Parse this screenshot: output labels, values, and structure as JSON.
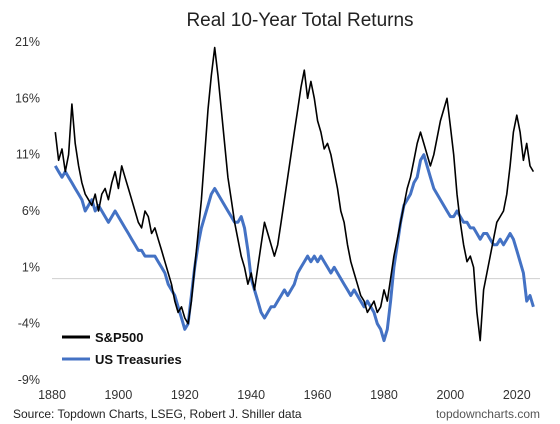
{
  "chart_data": {
    "type": "line",
    "title": "Real 10-Year Total Returns",
    "xlabel": "",
    "ylabel": "",
    "xlim": [
      1880,
      2027
    ],
    "ylim": [
      -9,
      21
    ],
    "x_ticks": [
      1880,
      1900,
      1920,
      1940,
      1960,
      1980,
      2000,
      2020
    ],
    "x_tick_labels": [
      "1880",
      "1900",
      "1920",
      "1940",
      "1960",
      "1980",
      "2000",
      "2020"
    ],
    "y_ticks": [
      21,
      16,
      11,
      6,
      1,
      -4,
      -9
    ],
    "y_tick_labels": [
      "21%",
      "16%",
      "11%",
      "6%",
      "1%",
      "-4%",
      "-9%"
    ],
    "zero_line": 0,
    "legend_position": "bottom-left",
    "series": [
      {
        "name": "S&P500",
        "color": "#000000",
        "points": [
          [
            1881,
            13.0
          ],
          [
            1882,
            10.5
          ],
          [
            1883,
            11.5
          ],
          [
            1884,
            9.5
          ],
          [
            1885,
            11.0
          ],
          [
            1886,
            15.5
          ],
          [
            1887,
            12.0
          ],
          [
            1888,
            10.0
          ],
          [
            1889,
            8.5
          ],
          [
            1890,
            7.5
          ],
          [
            1891,
            7.0
          ],
          [
            1892,
            6.5
          ],
          [
            1893,
            7.5
          ],
          [
            1894,
            6.0
          ],
          [
            1895,
            7.5
          ],
          [
            1896,
            8.0
          ],
          [
            1897,
            7.0
          ],
          [
            1898,
            8.5
          ],
          [
            1899,
            9.5
          ],
          [
            1900,
            8.0
          ],
          [
            1901,
            10.0
          ],
          [
            1902,
            9.0
          ],
          [
            1903,
            8.0
          ],
          [
            1904,
            7.0
          ],
          [
            1905,
            6.0
          ],
          [
            1906,
            5.0
          ],
          [
            1907,
            4.5
          ],
          [
            1908,
            6.0
          ],
          [
            1909,
            5.5
          ],
          [
            1910,
            4.0
          ],
          [
            1911,
            4.5
          ],
          [
            1912,
            3.5
          ],
          [
            1913,
            2.5
          ],
          [
            1914,
            1.5
          ],
          [
            1915,
            0.5
          ],
          [
            1916,
            -0.5
          ],
          [
            1917,
            -2.0
          ],
          [
            1918,
            -3.0
          ],
          [
            1919,
            -2.5
          ],
          [
            1920,
            -3.5
          ],
          [
            1921,
            -4.0
          ],
          [
            1922,
            -2.0
          ],
          [
            1923,
            1.0
          ],
          [
            1924,
            4.0
          ],
          [
            1925,
            7.0
          ],
          [
            1926,
            11.0
          ],
          [
            1927,
            15.0
          ],
          [
            1928,
            18.0
          ],
          [
            1929,
            20.5
          ],
          [
            1930,
            18.0
          ],
          [
            1931,
            15.0
          ],
          [
            1932,
            12.0
          ],
          [
            1933,
            9.0
          ],
          [
            1934,
            7.0
          ],
          [
            1935,
            5.0
          ],
          [
            1936,
            3.5
          ],
          [
            1937,
            2.0
          ],
          [
            1938,
            1.0
          ],
          [
            1939,
            -0.5
          ],
          [
            1940,
            0.5
          ],
          [
            1941,
            -1.0
          ],
          [
            1942,
            1.0
          ],
          [
            1943,
            3.0
          ],
          [
            1944,
            5.0
          ],
          [
            1945,
            4.0
          ],
          [
            1946,
            3.0
          ],
          [
            1947,
            2.0
          ],
          [
            1948,
            3.0
          ],
          [
            1949,
            5.0
          ],
          [
            1950,
            7.0
          ],
          [
            1951,
            9.0
          ],
          [
            1952,
            11.0
          ],
          [
            1953,
            13.0
          ],
          [
            1954,
            15.0
          ],
          [
            1955,
            17.0
          ],
          [
            1956,
            18.5
          ],
          [
            1957,
            16.0
          ],
          [
            1958,
            17.5
          ],
          [
            1959,
            16.0
          ],
          [
            1960,
            14.0
          ],
          [
            1961,
            13.0
          ],
          [
            1962,
            11.5
          ],
          [
            1963,
            12.0
          ],
          [
            1964,
            11.0
          ],
          [
            1965,
            9.5
          ],
          [
            1966,
            8.0
          ],
          [
            1967,
            6.0
          ],
          [
            1968,
            5.0
          ],
          [
            1969,
            3.0
          ],
          [
            1970,
            1.5
          ],
          [
            1971,
            0.5
          ],
          [
            1972,
            -0.5
          ],
          [
            1973,
            -1.5
          ],
          [
            1974,
            -2.0
          ],
          [
            1975,
            -3.0
          ],
          [
            1976,
            -2.5
          ],
          [
            1977,
            -2.0
          ],
          [
            1978,
            -3.0
          ],
          [
            1979,
            -2.5
          ],
          [
            1980,
            -1.0
          ],
          [
            1981,
            -2.0
          ],
          [
            1982,
            0.0
          ],
          [
            1983,
            2.0
          ],
          [
            1984,
            3.5
          ],
          [
            1985,
            5.0
          ],
          [
            1986,
            6.5
          ],
          [
            1987,
            8.0
          ],
          [
            1988,
            9.0
          ],
          [
            1989,
            10.5
          ],
          [
            1990,
            12.0
          ],
          [
            1991,
            13.0
          ],
          [
            1992,
            12.0
          ],
          [
            1993,
            11.0
          ],
          [
            1994,
            10.0
          ],
          [
            1995,
            11.0
          ],
          [
            1996,
            12.5
          ],
          [
            1997,
            14.0
          ],
          [
            1998,
            15.0
          ],
          [
            1999,
            16.0
          ],
          [
            2000,
            13.5
          ],
          [
            2001,
            11.0
          ],
          [
            2002,
            7.5
          ],
          [
            2003,
            5.0
          ],
          [
            2004,
            3.0
          ],
          [
            2005,
            1.5
          ],
          [
            2006,
            2.0
          ],
          [
            2007,
            1.0
          ],
          [
            2008,
            -3.0
          ],
          [
            2009,
            -5.5
          ],
          [
            2010,
            -1.0
          ],
          [
            2011,
            0.5
          ],
          [
            2012,
            2.0
          ],
          [
            2013,
            3.5
          ],
          [
            2014,
            5.0
          ],
          [
            2015,
            5.5
          ],
          [
            2016,
            6.0
          ],
          [
            2017,
            7.5
          ],
          [
            2018,
            10.0
          ],
          [
            2019,
            13.0
          ],
          [
            2020,
            14.5
          ],
          [
            2021,
            13.0
          ],
          [
            2022,
            10.5
          ],
          [
            2023,
            12.0
          ],
          [
            2024,
            10.0
          ],
          [
            2025,
            9.5
          ]
        ]
      },
      {
        "name": "US Treasuries",
        "color": "#4472C4",
        "points": [
          [
            1881,
            10.0
          ],
          [
            1882,
            9.5
          ],
          [
            1883,
            9.0
          ],
          [
            1884,
            9.5
          ],
          [
            1885,
            9.0
          ],
          [
            1886,
            8.5
          ],
          [
            1887,
            8.0
          ],
          [
            1888,
            7.5
          ],
          [
            1889,
            7.0
          ],
          [
            1890,
            6.0
          ],
          [
            1891,
            6.5
          ],
          [
            1892,
            7.0
          ],
          [
            1893,
            6.0
          ],
          [
            1894,
            6.5
          ],
          [
            1895,
            6.0
          ],
          [
            1896,
            5.5
          ],
          [
            1897,
            5.0
          ],
          [
            1898,
            5.5
          ],
          [
            1899,
            6.0
          ],
          [
            1900,
            5.5
          ],
          [
            1901,
            5.0
          ],
          [
            1902,
            4.5
          ],
          [
            1903,
            4.0
          ],
          [
            1904,
            3.5
          ],
          [
            1905,
            3.0
          ],
          [
            1906,
            2.5
          ],
          [
            1907,
            2.5
          ],
          [
            1908,
            2.0
          ],
          [
            1909,
            2.0
          ],
          [
            1910,
            2.0
          ],
          [
            1911,
            2.0
          ],
          [
            1912,
            1.5
          ],
          [
            1913,
            1.0
          ],
          [
            1914,
            0.5
          ],
          [
            1915,
            -0.5
          ],
          [
            1916,
            -1.0
          ],
          [
            1917,
            -1.5
          ],
          [
            1918,
            -2.5
          ],
          [
            1919,
            -3.5
          ],
          [
            1920,
            -4.5
          ],
          [
            1921,
            -4.0
          ],
          [
            1922,
            -1.5
          ],
          [
            1923,
            1.0
          ],
          [
            1924,
            3.0
          ],
          [
            1925,
            4.5
          ],
          [
            1926,
            5.5
          ],
          [
            1927,
            6.5
          ],
          [
            1928,
            7.5
          ],
          [
            1929,
            8.0
          ],
          [
            1930,
            7.5
          ],
          [
            1931,
            7.0
          ],
          [
            1932,
            6.5
          ],
          [
            1933,
            6.0
          ],
          [
            1934,
            5.5
          ],
          [
            1935,
            5.0
          ],
          [
            1936,
            5.0
          ],
          [
            1937,
            5.5
          ],
          [
            1938,
            4.5
          ],
          [
            1939,
            2.5
          ],
          [
            1940,
            0.0
          ],
          [
            1941,
            -1.0
          ],
          [
            1942,
            -2.0
          ],
          [
            1943,
            -3.0
          ],
          [
            1944,
            -3.5
          ],
          [
            1945,
            -3.0
          ],
          [
            1946,
            -2.5
          ],
          [
            1947,
            -2.5
          ],
          [
            1948,
            -2.0
          ],
          [
            1949,
            -1.5
          ],
          [
            1950,
            -1.0
          ],
          [
            1951,
            -1.5
          ],
          [
            1952,
            -1.0
          ],
          [
            1953,
            -0.5
          ],
          [
            1954,
            0.5
          ],
          [
            1955,
            1.0
          ],
          [
            1956,
            1.5
          ],
          [
            1957,
            2.0
          ],
          [
            1958,
            1.5
          ],
          [
            1959,
            2.0
          ],
          [
            1960,
            1.5
          ],
          [
            1961,
            2.0
          ],
          [
            1962,
            1.5
          ],
          [
            1963,
            1.0
          ],
          [
            1964,
            0.5
          ],
          [
            1965,
            1.0
          ],
          [
            1966,
            0.5
          ],
          [
            1967,
            0.0
          ],
          [
            1968,
            -0.5
          ],
          [
            1969,
            -1.0
          ],
          [
            1970,
            -1.5
          ],
          [
            1971,
            -1.0
          ],
          [
            1972,
            -1.5
          ],
          [
            1973,
            -2.0
          ],
          [
            1974,
            -2.5
          ],
          [
            1975,
            -2.0
          ],
          [
            1976,
            -2.5
          ],
          [
            1977,
            -3.0
          ],
          [
            1978,
            -4.0
          ],
          [
            1979,
            -4.5
          ],
          [
            1980,
            -5.5
          ],
          [
            1981,
            -4.5
          ],
          [
            1982,
            -2.0
          ],
          [
            1983,
            1.0
          ],
          [
            1984,
            3.0
          ],
          [
            1985,
            5.0
          ],
          [
            1986,
            6.5
          ],
          [
            1987,
            7.0
          ],
          [
            1988,
            7.5
          ],
          [
            1989,
            8.5
          ],
          [
            1990,
            9.0
          ],
          [
            1991,
            10.5
          ],
          [
            1992,
            11.0
          ],
          [
            1993,
            10.0
          ],
          [
            1994,
            9.0
          ],
          [
            1995,
            8.0
          ],
          [
            1996,
            7.5
          ],
          [
            1997,
            7.0
          ],
          [
            1998,
            6.5
          ],
          [
            1999,
            6.0
          ],
          [
            2000,
            5.5
          ],
          [
            2001,
            5.5
          ],
          [
            2002,
            6.0
          ],
          [
            2003,
            5.5
          ],
          [
            2004,
            5.0
          ],
          [
            2005,
            5.0
          ],
          [
            2006,
            4.5
          ],
          [
            2007,
            4.5
          ],
          [
            2008,
            4.0
          ],
          [
            2009,
            3.5
          ],
          [
            2010,
            4.0
          ],
          [
            2011,
            4.0
          ],
          [
            2012,
            3.5
          ],
          [
            2013,
            3.0
          ],
          [
            2014,
            3.0
          ],
          [
            2015,
            3.5
          ],
          [
            2016,
            3.0
          ],
          [
            2017,
            3.5
          ],
          [
            2018,
            4.0
          ],
          [
            2019,
            3.5
          ],
          [
            2020,
            2.5
          ],
          [
            2021,
            1.5
          ],
          [
            2022,
            0.5
          ],
          [
            2023,
            -2.0
          ],
          [
            2024,
            -1.5
          ],
          [
            2025,
            -2.5
          ]
        ]
      }
    ],
    "source": "Source: Topdown Charts, LSEG, Robert J. Shiller data",
    "brand": "topdowncharts.com"
  }
}
